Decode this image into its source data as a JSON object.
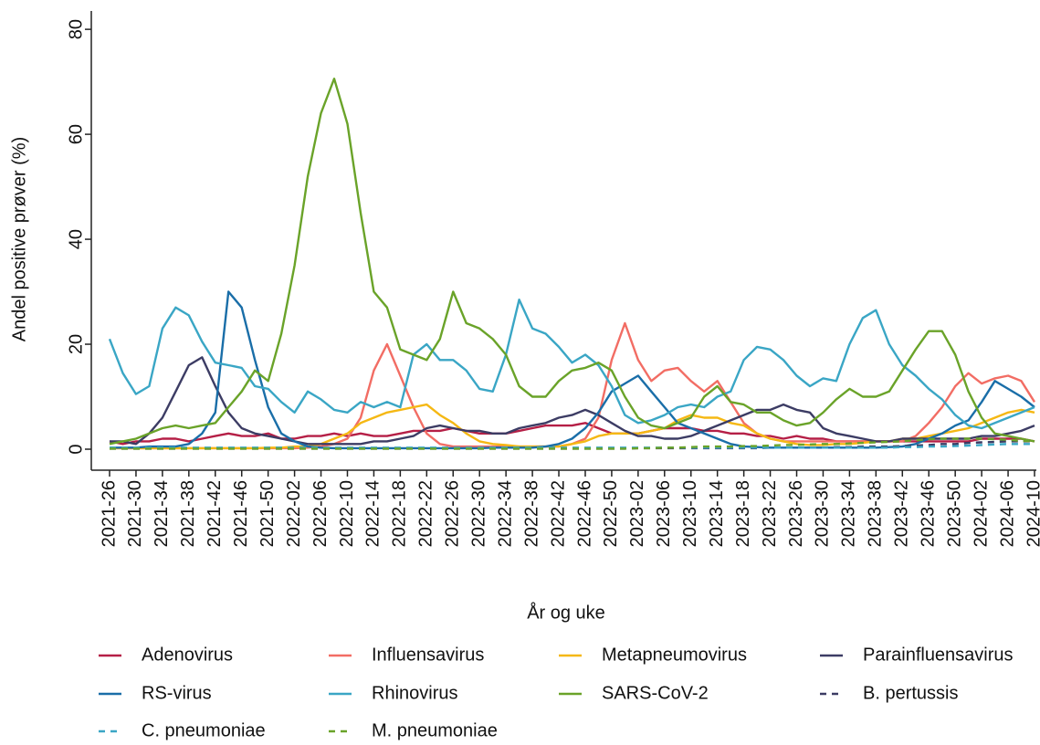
{
  "chart_data": {
    "type": "line",
    "x_label": "År og uke",
    "y_label": "Andel positive prøver (%)",
    "categories": [
      "2021-26",
      null,
      "2021-30",
      null,
      "2021-34",
      null,
      "2021-38",
      null,
      "2021-42",
      null,
      "2021-46",
      null,
      "2021-50",
      null,
      "2022-02",
      null,
      "2022-06",
      null,
      "2022-10",
      null,
      "2022-14",
      null,
      "2022-18",
      null,
      "2022-22",
      null,
      "2022-26",
      null,
      "2022-30",
      null,
      "2022-34",
      null,
      "2022-38",
      null,
      "2022-42",
      null,
      "2022-46",
      null,
      "2022-50",
      null,
      "2023-02",
      null,
      "2023-06",
      null,
      "2023-10",
      null,
      "2023-14",
      null,
      "2023-18",
      null,
      "2023-22",
      null,
      "2023-26",
      null,
      "2023-30",
      null,
      "2023-34",
      null,
      "2023-38",
      null,
      "2023-42",
      null,
      "2023-46",
      null,
      "2023-50",
      null,
      "2024-02",
      null,
      "2024-06",
      null,
      "2024-10"
    ],
    "ylim": [
      -4,
      83.5
    ],
    "yticks": [
      0,
      20,
      40,
      60,
      80
    ],
    "grid": false,
    "legend": "bottom",
    "series": [
      {
        "name": "Adenovirus",
        "color": "#b51f46",
        "line_style": "solid",
        "values": [
          1.5,
          1,
          1.5,
          1.5,
          2,
          2,
          1.5,
          2,
          2.5,
          3,
          2.5,
          2.5,
          3,
          2,
          2,
          2.5,
          2.5,
          3,
          2.5,
          3,
          2.5,
          2.5,
          3,
          3.5,
          3.5,
          3.5,
          4,
          3.5,
          3,
          3,
          3,
          3.5,
          4,
          4.5,
          4.5,
          4.5,
          5,
          4,
          3,
          3,
          3,
          3.5,
          4,
          4,
          4,
          3.5,
          3.5,
          3,
          3,
          2.5,
          2.5,
          2,
          2.5,
          2,
          2,
          1.5,
          1.5,
          1.5,
          1.5,
          1.5,
          1.5,
          1.5,
          1.5,
          1.5,
          1.5,
          1.5,
          2,
          2,
          2,
          2,
          1.5
        ]
      },
      {
        "name": "Influensavirus",
        "color": "#f26d64",
        "line_style": "solid",
        "values": [
          0.2,
          0.2,
          0.2,
          0.2,
          0.2,
          0.2,
          0.2,
          0.2,
          0.2,
          0.2,
          0.2,
          0.2,
          0.2,
          0.2,
          0.2,
          0.3,
          0.5,
          1,
          2,
          6,
          15,
          20,
          14,
          8,
          3,
          1,
          0.5,
          0.5,
          0.5,
          0.5,
          0.5,
          0.5,
          0.5,
          0.5,
          0.5,
          1,
          2,
          6,
          17,
          24,
          17,
          13,
          15,
          15.5,
          13,
          11,
          13,
          9,
          5,
          3,
          2,
          1.5,
          1.5,
          1.5,
          1.5,
          1.5,
          1.5,
          1.5,
          1.5,
          1.5,
          1.5,
          2.5,
          5,
          8,
          12,
          14.5,
          12.5,
          13.5,
          14,
          13,
          9
        ]
      },
      {
        "name": "Metapneumovirus",
        "color": "#f5b814",
        "line_style": "solid",
        "values": [
          0.2,
          0.2,
          0.2,
          0.2,
          0.2,
          0.2,
          0.2,
          0.2,
          0.2,
          0.2,
          0.2,
          0.2,
          0.3,
          0.3,
          0.5,
          0.5,
          1,
          2,
          3,
          5,
          6,
          7,
          7.5,
          8,
          8.5,
          6.5,
          5,
          3,
          1.5,
          1,
          0.8,
          0.5,
          0.5,
          0.5,
          0.5,
          1,
          1.5,
          2.5,
          3,
          3,
          3,
          3.5,
          4,
          5.5,
          6.5,
          6,
          6,
          5,
          4.5,
          3,
          2,
          1.5,
          1,
          0.8,
          0.8,
          1,
          1,
          1.2,
          1.5,
          1.5,
          2,
          2,
          2.5,
          3,
          3.5,
          4,
          5,
          6,
          7,
          7.5,
          7
        ]
      },
      {
        "name": "Parainfluensavirus",
        "color": "#3c3c64",
        "line_style": "solid",
        "values": [
          1.5,
          1.5,
          1,
          3,
          6,
          11,
          16,
          17.5,
          12,
          7,
          4,
          3,
          2.5,
          2,
          1.5,
          1,
          1,
          1,
          1,
          1,
          1.5,
          1.5,
          2,
          2.5,
          4,
          4.5,
          4,
          3.5,
          3.5,
          3,
          3,
          4,
          4.5,
          5,
          6,
          6.5,
          7.5,
          6.5,
          5,
          3.5,
          2.5,
          2.5,
          2,
          2,
          2.5,
          3.5,
          4.5,
          5.5,
          6.5,
          7.5,
          7.5,
          8.5,
          7.5,
          7,
          4,
          3,
          2.5,
          2,
          1.5,
          1.5,
          2,
          2,
          2,
          2,
          2,
          2,
          2.5,
          2.5,
          3,
          3.5,
          4.5
        ]
      },
      {
        "name": "RS-virus",
        "color": "#1a6ea8",
        "line_style": "solid",
        "values": [
          0.3,
          0.3,
          0.3,
          0.5,
          0.5,
          0.5,
          1,
          3,
          7,
          30,
          27,
          17,
          8,
          3,
          1.5,
          0.5,
          0.3,
          0.2,
          0.2,
          0.2,
          0.2,
          0.2,
          0.2,
          0.2,
          0.2,
          0.2,
          0.2,
          0.2,
          0.2,
          0.3,
          0.3,
          0.3,
          0.3,
          0.5,
          1,
          2,
          4,
          7,
          11,
          12.5,
          14,
          11,
          8,
          5,
          4,
          3,
          2,
          1,
          0.5,
          0.4,
          0.3,
          0.3,
          0.3,
          0.3,
          0.3,
          0.3,
          0.3,
          0.3,
          0.3,
          0.4,
          0.5,
          1,
          2,
          3,
          4.5,
          5.5,
          9,
          13,
          11.5,
          10,
          8
        ]
      },
      {
        "name": "Rhinovirus",
        "color": "#3aa6c5",
        "line_style": "solid",
        "values": [
          21,
          14.5,
          10.5,
          12,
          23,
          27,
          25.5,
          20.5,
          16.5,
          16,
          15.5,
          12,
          11.5,
          9,
          7,
          11,
          9.5,
          7.5,
          7,
          9,
          8,
          9,
          8,
          18,
          20,
          17,
          17,
          15,
          11.5,
          11,
          18,
          28.5,
          23,
          22,
          19.5,
          16.5,
          18,
          16,
          12,
          6.5,
          5,
          5.5,
          6.5,
          8,
          8.5,
          8,
          10,
          11,
          17,
          19.5,
          19,
          17,
          14,
          12,
          13.5,
          13,
          20,
          25,
          26.5,
          20,
          16,
          14,
          11.5,
          9.5,
          6.5,
          4.5,
          4,
          5,
          6,
          7,
          8
        ]
      },
      {
        "name": "SARS-CoV-2",
        "color": "#6aa329",
        "line_style": "solid",
        "values": [
          1,
          1.5,
          2,
          3,
          4,
          4.5,
          4,
          4.5,
          5,
          8,
          11,
          15,
          13,
          22,
          35,
          52,
          64,
          70.6,
          62,
          45,
          30,
          27,
          19,
          18,
          17,
          21,
          30,
          24,
          23,
          21,
          18,
          12,
          10,
          10,
          13,
          15,
          15.5,
          16.5,
          15,
          10,
          6,
          4.5,
          4,
          5,
          6,
          10,
          12,
          9,
          8.5,
          7,
          7,
          5.5,
          4.5,
          5,
          7,
          9.5,
          11.5,
          10,
          10,
          11,
          15,
          19,
          22.5,
          22.5,
          18,
          11,
          6,
          3,
          2.5,
          2,
          1.5
        ]
      },
      {
        "name": "B. pertussis",
        "color": "#3c3c64",
        "line_style": "dashed",
        "values": [
          0.1,
          0.1,
          0.1,
          0.1,
          0.1,
          0.1,
          0.1,
          0.1,
          0.1,
          0.1,
          0.1,
          0.1,
          0.1,
          0.1,
          0.1,
          0.1,
          0.1,
          0.1,
          0.1,
          0.1,
          0.1,
          0.1,
          0.1,
          0.1,
          0.1,
          0.1,
          0.1,
          0.1,
          0.1,
          0.1,
          0.1,
          0.1,
          0.1,
          0.1,
          0.1,
          0.1,
          0.1,
          0.1,
          0.1,
          0.1,
          0.2,
          0.2,
          0.2,
          0.2,
          0.2,
          0.2,
          0.2,
          0.2,
          0.2,
          0.2,
          0.3,
          0.3,
          0.3,
          0.3,
          0.3,
          0.4,
          0.4,
          0.5,
          0.5,
          0.5,
          0.6,
          0.7,
          0.8,
          1,
          1,
          1.2,
          1.3,
          1.4,
          1.5,
          1.5,
          1.5
        ]
      },
      {
        "name": "C. pneumoniae",
        "color": "#3aa6c5",
        "line_style": "dashed",
        "values": [
          0.3,
          0.3,
          0.3,
          0.3,
          0.3,
          0.3,
          0.3,
          0.3,
          0.3,
          0.3,
          0.3,
          0.3,
          0.3,
          0.3,
          0.3,
          0.3,
          0.3,
          0.3,
          0.3,
          0.3,
          0.3,
          0.3,
          0.3,
          0.3,
          0.3,
          0.3,
          0.3,
          0.3,
          0.3,
          0.3,
          0.3,
          0.3,
          0.3,
          0.3,
          0.3,
          0.3,
          0.3,
          0.3,
          0.3,
          0.3,
          0.3,
          0.3,
          0.3,
          0.3,
          0.3,
          0.3,
          0.3,
          0.3,
          0.3,
          0.3,
          0.3,
          0.3,
          0.3,
          0.3,
          0.3,
          0.3,
          0.3,
          0.3,
          0.3,
          0.3,
          0.4,
          0.4,
          0.5,
          0.5,
          0.6,
          0.7,
          0.8,
          0.9,
          1,
          1,
          1
        ]
      },
      {
        "name": "M. pneumoniae",
        "color": "#6aa329",
        "line_style": "dashed",
        "values": [
          0.1,
          0.1,
          0.1,
          0.1,
          0.1,
          0.1,
          0.1,
          0.1,
          0.1,
          0.1,
          0.1,
          0.1,
          0.1,
          0.1,
          0.1,
          0.1,
          0.1,
          0.1,
          0.1,
          0.1,
          0.1,
          0.1,
          0.1,
          0.1,
          0.1,
          0.1,
          0.1,
          0.1,
          0.1,
          0.1,
          0.1,
          0.1,
          0.1,
          0.1,
          0.1,
          0.1,
          0.1,
          0.1,
          0.1,
          0.1,
          0.2,
          0.2,
          0.3,
          0.3,
          0.4,
          0.5,
          0.5,
          0.5,
          0.6,
          0.6,
          0.7,
          0.8,
          0.8,
          0.9,
          1,
          1,
          1.1,
          1.2,
          1.3,
          1.4,
          1.5,
          1.7,
          1.9,
          2,
          2,
          2,
          2,
          1.9,
          1.8,
          1.6,
          1.5
        ]
      }
    ]
  }
}
